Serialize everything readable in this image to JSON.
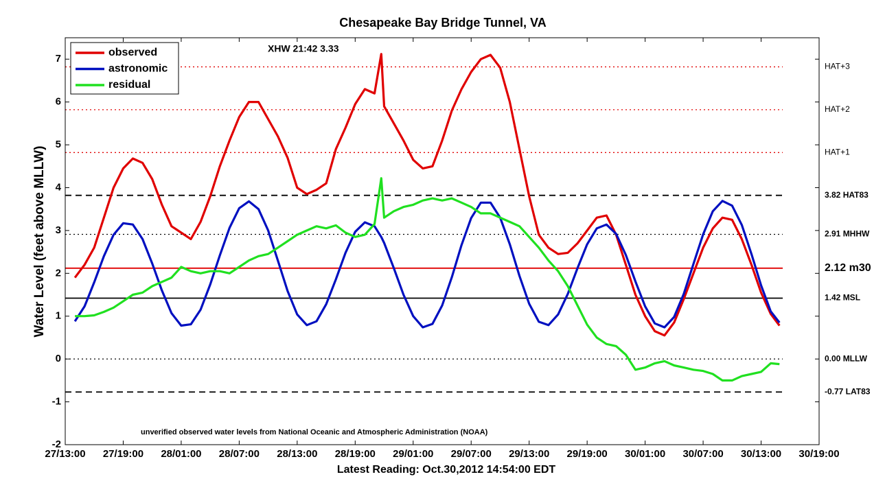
{
  "chart_data": {
    "type": "line",
    "title": "Chesapeake Bay Bridge Tunnel, VA",
    "xlabel": "Latest Reading: Oct.30,2012 14:54:00 EDT",
    "ylabel": "Water Level (feet above MLLW)",
    "annotations": [
      "XHW 21:42 3.33",
      "unverified observed water levels from National Oceanic and Atmospheric Administration (NOAA)"
    ],
    "legend": "upper left",
    "x": [
      "27/14:00",
      "27/15:00",
      "27/16:00",
      "27/17:00",
      "27/18:00",
      "27/19:00",
      "27/20:00",
      "27/21:00",
      "27/22:00",
      "27/23:00",
      "28/00:00",
      "28/01:00",
      "28/02:00",
      "28/03:00",
      "28/04:00",
      "28/05:00",
      "28/06:00",
      "28/07:00",
      "28/08:00",
      "28/09:00",
      "28/10:00",
      "28/11:00",
      "28/12:00",
      "28/13:00",
      "28/14:00",
      "28/15:00",
      "28/16:00",
      "28/17:00",
      "28/18:00",
      "28/19:00",
      "28/20:00",
      "28/21:00",
      "28/21:42",
      "28/22:00",
      "28/23:00",
      "29/00:00",
      "29/01:00",
      "29/02:00",
      "29/03:00",
      "29/04:00",
      "29/05:00",
      "29/06:00",
      "29/07:00",
      "29/08:00",
      "29/09:00",
      "29/10:00",
      "29/11:00",
      "29/12:00",
      "29/13:00",
      "29/14:00",
      "29/15:00",
      "29/16:00",
      "29/17:00",
      "29/18:00",
      "29/19:00",
      "29/20:00",
      "29/21:00",
      "29/22:00",
      "29/23:00",
      "30/00:00",
      "30/01:00",
      "30/02:00",
      "30/03:00",
      "30/04:00",
      "30/05:00",
      "30/06:00",
      "30/07:00",
      "30/08:00",
      "30/09:00",
      "30/10:00",
      "30/11:00",
      "30/12:00",
      "30/13:00",
      "30/14:00",
      "30/14:54"
    ],
    "series": [
      {
        "name": "observed",
        "color": "#e00000",
        "values": [
          1.9,
          2.2,
          2.6,
          3.3,
          4.0,
          4.45,
          4.68,
          4.58,
          4.2,
          3.6,
          3.1,
          2.95,
          2.8,
          3.2,
          3.8,
          4.5,
          5.1,
          5.65,
          6.0,
          6.0,
          5.6,
          5.2,
          4.7,
          4.0,
          3.85,
          3.95,
          4.1,
          4.9,
          5.4,
          5.95,
          6.3,
          6.2,
          7.12,
          5.9,
          5.5,
          5.1,
          4.65,
          4.45,
          4.5,
          5.1,
          5.8,
          6.3,
          6.7,
          7.0,
          7.1,
          6.8,
          6.0,
          4.9,
          3.8,
          2.9,
          2.6,
          2.45,
          2.48,
          2.7,
          3.0,
          3.3,
          3.35,
          2.9,
          2.2,
          1.5,
          1.0,
          0.65,
          0.55,
          0.85,
          1.4,
          2.0,
          2.6,
          3.05,
          3.3,
          3.25,
          2.8,
          2.2,
          1.55,
          1.05,
          0.78
        ]
      },
      {
        "name": "astronomic",
        "color": "#0010c0",
        "values": [
          0.88,
          1.23,
          1.79,
          2.4,
          2.9,
          3.17,
          3.14,
          2.8,
          2.23,
          1.6,
          1.07,
          0.78,
          0.81,
          1.15,
          1.74,
          2.42,
          3.06,
          3.52,
          3.68,
          3.5,
          3.0,
          2.3,
          1.59,
          1.04,
          0.79,
          0.88,
          1.28,
          1.86,
          2.48,
          2.97,
          3.19,
          3.1,
          2.85,
          2.71,
          2.12,
          1.5,
          1.0,
          0.74,
          0.82,
          1.25,
          1.91,
          2.66,
          3.29,
          3.65,
          3.65,
          3.3,
          2.68,
          1.94,
          1.29,
          0.87,
          0.79,
          1.04,
          1.52,
          2.12,
          2.68,
          3.05,
          3.14,
          2.92,
          2.43,
          1.81,
          1.23,
          0.83,
          0.74,
          0.98,
          1.52,
          2.22,
          2.91,
          3.45,
          3.69,
          3.58,
          3.13,
          2.45,
          1.72,
          1.11,
          0.85
        ]
      },
      {
        "name": "residual",
        "color": "#20e020",
        "values": [
          1.0,
          1.0,
          1.02,
          1.1,
          1.2,
          1.35,
          1.5,
          1.55,
          1.7,
          1.8,
          1.9,
          2.15,
          2.05,
          2.0,
          2.05,
          2.05,
          2.0,
          2.15,
          2.3,
          2.4,
          2.45,
          2.6,
          2.75,
          2.9,
          3.0,
          3.1,
          3.05,
          3.12,
          2.95,
          2.85,
          2.9,
          3.15,
          4.22,
          3.3,
          3.45,
          3.55,
          3.6,
          3.7,
          3.75,
          3.7,
          3.75,
          3.65,
          3.55,
          3.4,
          3.4,
          3.3,
          3.2,
          3.1,
          2.85,
          2.6,
          2.3,
          2.05,
          1.7,
          1.25,
          0.8,
          0.5,
          0.35,
          0.3,
          0.1,
          -0.25,
          -0.2,
          -0.1,
          -0.05,
          -0.15,
          -0.2,
          -0.25,
          -0.28,
          -0.35,
          -0.5,
          -0.5,
          -0.4,
          -0.35,
          -0.3,
          -0.1,
          -0.12
        ]
      }
    ],
    "reference_lines": [
      {
        "label": "HAT+3",
        "value": 6.82,
        "color": "#e00000",
        "style": "dotted"
      },
      {
        "label": "HAT+2",
        "value": 5.82,
        "color": "#e00000",
        "style": "dotted"
      },
      {
        "label": "HAT+1",
        "value": 4.82,
        "color": "#e00000",
        "style": "dotted"
      },
      {
        "label": "3.82 HAT83",
        "value": 3.82,
        "color": "#000000",
        "style": "dashed"
      },
      {
        "label": "2.91 MHHW",
        "value": 2.91,
        "color": "#000000",
        "style": "dotted"
      },
      {
        "label": "2.12 m30",
        "value": 2.12,
        "color": "#e00000",
        "style": "solid"
      },
      {
        "label": "1.42 MSL",
        "value": 1.42,
        "color": "#000000",
        "style": "solid"
      },
      {
        "label": "0.00 MLLW",
        "value": 0,
        "color": "#000000",
        "style": "dotted"
      },
      {
        "label": "-0.77 LAT83",
        "value": -0.77,
        "color": "#000000",
        "style": "dashed"
      }
    ],
    "xlim": [
      "27/13:00",
      "30/19:00"
    ],
    "xticks": [
      "27/13:00",
      "27/19:00",
      "28/01:00",
      "28/07:00",
      "28/13:00",
      "28/19:00",
      "29/01:00",
      "29/07:00",
      "29/13:00",
      "29/19:00",
      "30/01:00",
      "30/07:00",
      "30/13:00",
      "30/19:00"
    ],
    "ylim": [
      -2,
      7.5
    ],
    "yticks": [
      -2,
      -1,
      0,
      1,
      2,
      3,
      4,
      5,
      6,
      7
    ]
  }
}
